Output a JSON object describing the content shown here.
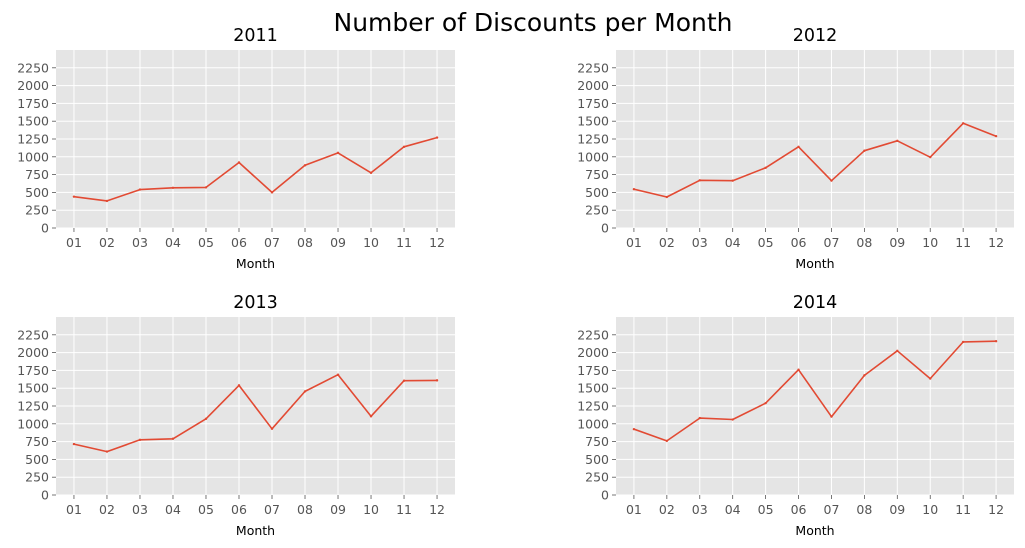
{
  "suptitle": "Number of Discounts per Month",
  "colors": {
    "line": "#e24a33",
    "axes_bg": "#e5e5e5",
    "grid": "#ffffff",
    "tick_text": "#555555"
  },
  "chart_data": [
    {
      "type": "line",
      "title": "2011",
      "xlabel": "Month",
      "ylabel": "",
      "categories": [
        "01",
        "02",
        "03",
        "04",
        "05",
        "06",
        "07",
        "08",
        "09",
        "10",
        "11",
        "12"
      ],
      "values": [
        440,
        380,
        540,
        565,
        570,
        920,
        500,
        880,
        1055,
        775,
        1140,
        1270
      ],
      "ylim": [
        0,
        2500
      ],
      "yticks": [
        0,
        250,
        500,
        750,
        1000,
        1250,
        1500,
        1750,
        2000,
        2250
      ],
      "grid": true
    },
    {
      "type": "line",
      "title": "2012",
      "xlabel": "Month",
      "ylabel": "",
      "categories": [
        "01",
        "02",
        "03",
        "04",
        "05",
        "06",
        "07",
        "08",
        "09",
        "10",
        "11",
        "12"
      ],
      "values": [
        545,
        435,
        670,
        665,
        845,
        1140,
        665,
        1085,
        1225,
        995,
        1470,
        1290
      ],
      "ylim": [
        0,
        2500
      ],
      "yticks": [
        0,
        250,
        500,
        750,
        1000,
        1250,
        1500,
        1750,
        2000,
        2250
      ],
      "grid": true
    },
    {
      "type": "line",
      "title": "2013",
      "xlabel": "Month",
      "ylabel": "",
      "categories": [
        "01",
        "02",
        "03",
        "04",
        "05",
        "06",
        "07",
        "08",
        "09",
        "10",
        "11",
        "12"
      ],
      "values": [
        715,
        610,
        775,
        790,
        1070,
        1540,
        930,
        1455,
        1690,
        1105,
        1605,
        1610
      ],
      "ylim": [
        0,
        2500
      ],
      "yticks": [
        0,
        250,
        500,
        750,
        1000,
        1250,
        1500,
        1750,
        2000,
        2250
      ],
      "grid": true
    },
    {
      "type": "line",
      "title": "2014",
      "xlabel": "Month",
      "ylabel": "",
      "categories": [
        "01",
        "02",
        "03",
        "04",
        "05",
        "06",
        "07",
        "08",
        "09",
        "10",
        "11",
        "12"
      ],
      "values": [
        925,
        760,
        1080,
        1060,
        1290,
        1760,
        1100,
        1680,
        2025,
        1635,
        2150,
        2160
      ],
      "ylim": [
        0,
        2500
      ],
      "yticks": [
        0,
        250,
        500,
        750,
        1000,
        1250,
        1500,
        1750,
        2000,
        2250
      ],
      "grid": true
    }
  ]
}
